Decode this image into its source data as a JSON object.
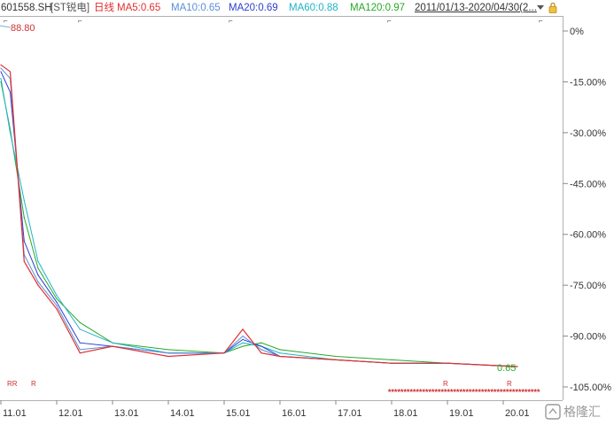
{
  "header": {
    "symbol": "601558.SH",
    "name": "[ST锐电]",
    "period": "日线",
    "ma5": "MA5:0.65",
    "ma10": "MA10:0.65",
    "ma20": "MA20:0.69",
    "ma60": "MA60:0.88",
    "ma120": "MA120:0.97",
    "range": "2011/01/13-2020/04/30(2..."
  },
  "colors": {
    "ma5": "#e03030",
    "ma10": "#5a8fd8",
    "ma20": "#2a3fd0",
    "ma60": "#20b4c8",
    "ma120": "#28a828",
    "header_name": "#555555",
    "price": "#1a2a90"
  },
  "icons": {
    "lock": "lock-icon",
    "dropdown": "chevron-down-icon",
    "watermark": "gelonghui-logo"
  },
  "annotations": {
    "high_label": "88.80",
    "last_label": "0.65",
    "marker_rr": "RR",
    "marker_r1": "R",
    "marker_r2": "R",
    "marker_r3": "R"
  },
  "watermark": {
    "text": "格隆汇"
  },
  "chart_data": {
    "type": "line",
    "title": "",
    "x_tick_labels": [
      "11.01",
      "12.01",
      "13.01",
      "14.01",
      "15.01",
      "16.01",
      "17.01",
      "18.01",
      "19.01",
      "20.01"
    ],
    "y_tick_labels": [
      "0%",
      "-15.00%",
      "-30.00%",
      "-45.00%",
      "-60.00%",
      "-75.00%",
      "-90.00%",
      "-105.00%"
    ],
    "ylim": [
      -105,
      0
    ],
    "series": [
      {
        "name": "MA5",
        "x": [
          "2011-01",
          "2011-03",
          "2011-06",
          "2011-09",
          "2012-01",
          "2012-06",
          "2013-01",
          "2014-01",
          "2015-01",
          "2015-05",
          "2015-09",
          "2016-01",
          "2017-01",
          "2018-01",
          "2019-01",
          "2020-04"
        ],
        "values": [
          -10,
          -12,
          -68,
          -75,
          -82,
          -95,
          -93,
          -96,
          -95,
          -88,
          -95,
          -96,
          -97,
          -98,
          -98,
          -99
        ]
      },
      {
        "name": "MA10",
        "x": [
          "2011-01",
          "2011-03",
          "2011-06",
          "2011-09",
          "2012-01",
          "2012-06",
          "2013-01",
          "2014-01",
          "2015-01",
          "2015-05",
          "2015-09",
          "2016-01",
          "2017-01",
          "2018-01",
          "2019-01",
          "2020-04"
        ],
        "values": [
          -11,
          -14,
          -66,
          -74,
          -81,
          -94,
          -93,
          -95,
          -95,
          -90,
          -94,
          -96,
          -97,
          -98,
          -98,
          -99
        ]
      },
      {
        "name": "MA20",
        "x": [
          "2011-01",
          "2011-03",
          "2011-06",
          "2011-09",
          "2012-01",
          "2012-06",
          "2013-01",
          "2014-01",
          "2015-01",
          "2015-05",
          "2015-09",
          "2016-01",
          "2017-01",
          "2018-01",
          "2019-01",
          "2020-04"
        ],
        "values": [
          -12,
          -18,
          -62,
          -72,
          -80,
          -92,
          -93,
          -95,
          -95,
          -91,
          -93,
          -96,
          -97,
          -98,
          -98,
          -99
        ]
      },
      {
        "name": "MA60",
        "x": [
          "2011-01",
          "2011-03",
          "2011-06",
          "2011-09",
          "2012-01",
          "2012-06",
          "2013-01",
          "2014-01",
          "2015-01",
          "2015-05",
          "2015-09",
          "2016-01",
          "2017-01",
          "2018-01",
          "2019-01",
          "2020-04"
        ],
        "values": [
          -14,
          -30,
          -50,
          -68,
          -78,
          -88,
          -92,
          -95,
          -95,
          -92,
          -93,
          -95,
          -97,
          -98,
          -98,
          -99
        ]
      },
      {
        "name": "MA120",
        "x": [
          "2011-01",
          "2011-03",
          "2011-06",
          "2011-09",
          "2012-01",
          "2012-06",
          "2013-01",
          "2014-01",
          "2015-01",
          "2015-05",
          "2015-09",
          "2016-01",
          "2017-01",
          "2018-01",
          "2019-01",
          "2020-04"
        ],
        "values": [
          -15,
          -29,
          -55,
          -70,
          -79,
          -86,
          -92,
          -94,
          -95,
          -93,
          -92,
          -94,
          -96,
          -97,
          -98,
          -99
        ]
      }
    ]
  }
}
